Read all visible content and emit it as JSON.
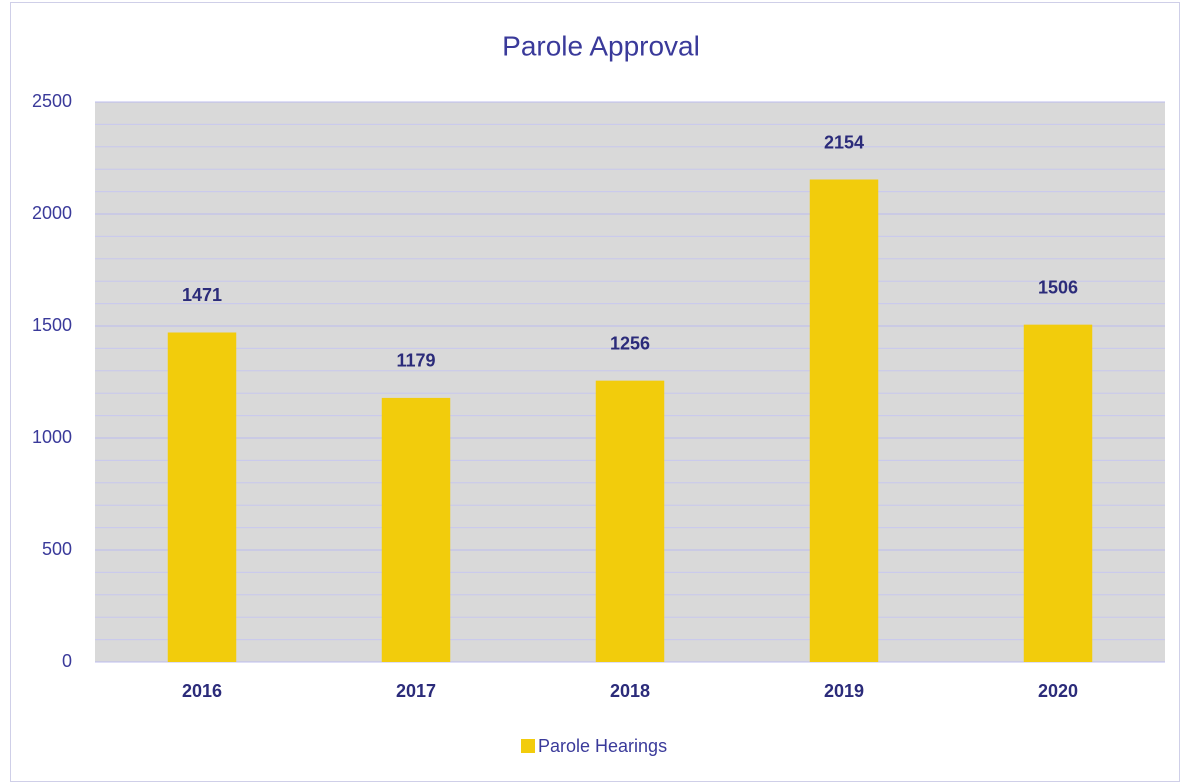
{
  "chart_data": {
    "type": "bar",
    "title": "Parole Approval",
    "categories": [
      "2016",
      "2017",
      "2018",
      "2019",
      "2020"
    ],
    "series": [
      {
        "name": "Parole Hearings",
        "color": "#f2cc0c",
        "values": [
          1471,
          1179,
          1256,
          2154,
          1506
        ]
      }
    ],
    "ylim": [
      0,
      2500
    ],
    "yticks": [
      0,
      500,
      1000,
      1500,
      2000,
      2500
    ],
    "minor_yticks": [
      100,
      200,
      300,
      400,
      600,
      700,
      800,
      900,
      1100,
      1200,
      1300,
      1400,
      1600,
      1700,
      1800,
      1900,
      2100,
      2200,
      2300,
      2400
    ],
    "grid": true,
    "legend": "bottom"
  }
}
